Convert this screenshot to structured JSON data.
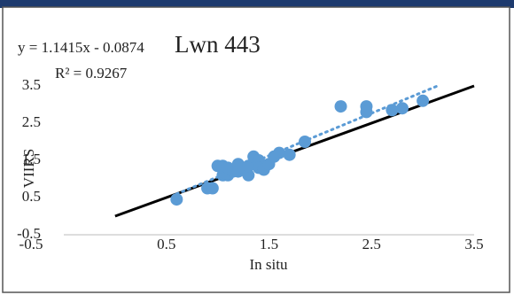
{
  "chart_data": {
    "type": "scatter",
    "title": "Lwn 443",
    "equation": "y = 1.1415x - 0.0874",
    "r_squared": "R² = 0.9267",
    "trendline": {
      "slope": 1.1415,
      "intercept": -0.0874,
      "color": "#5b9bd5"
    },
    "identity_line": true,
    "x_label": "In situ",
    "y_label": "VIIRS",
    "xlim": [
      -0.5,
      3.5
    ],
    "ylim": [
      -0.5,
      3.5
    ],
    "xticks": [
      -0.5,
      0.5,
      1.5,
      2.5,
      3.5
    ],
    "yticks": [
      -0.5,
      0.5,
      1.5,
      2.5,
      3.5
    ],
    "grid": false,
    "series": [
      {
        "color": "#5b9bd5",
        "x": [
          0.6,
          0.9,
          0.95,
          1.0,
          1.05,
          1.05,
          1.1,
          1.1,
          1.15,
          1.2,
          1.2,
          1.25,
          1.3,
          1.3,
          1.35,
          1.4,
          1.4,
          1.45,
          1.5,
          1.55,
          1.6,
          1.7,
          1.85,
          2.2,
          2.45,
          2.45,
          2.7,
          2.8,
          3.0
        ],
        "values": [
          0.45,
          0.75,
          0.75,
          1.35,
          1.35,
          1.1,
          1.1,
          1.3,
          1.2,
          1.4,
          1.2,
          1.3,
          1.1,
          1.35,
          1.6,
          1.5,
          1.3,
          1.25,
          1.4,
          1.6,
          1.7,
          1.65,
          2.0,
          2.95,
          2.95,
          2.8,
          2.85,
          2.9,
          3.1
        ]
      }
    ]
  }
}
